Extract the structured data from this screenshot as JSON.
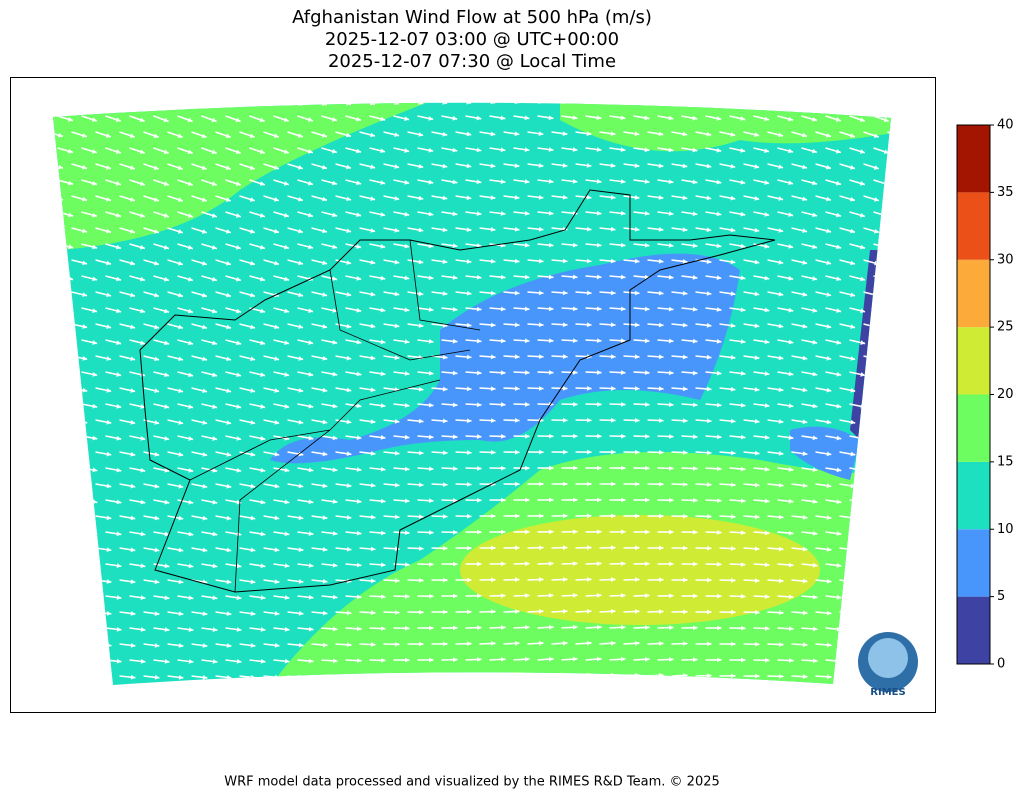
{
  "title": [
    "Afghanistan Wind Flow at 500 hPa (m/s)",
    "2025-12-07 03:00 @ UTC+00:00",
    "2025-12-07 07:30 @ Local Time"
  ],
  "colorbar": {
    "ticks": [
      0,
      5,
      10,
      15,
      20,
      25,
      30,
      35,
      40
    ],
    "colors": [
      "#3e43a3",
      "#4896fc",
      "#1ce0bf",
      "#6efd60",
      "#cfeb34",
      "#fcaa39",
      "#ea5018",
      "#a31401"
    ]
  },
  "logo": "RIMES",
  "footer": "WRF model data processed and visualized by the RIMES R&D Team. © 2025"
}
